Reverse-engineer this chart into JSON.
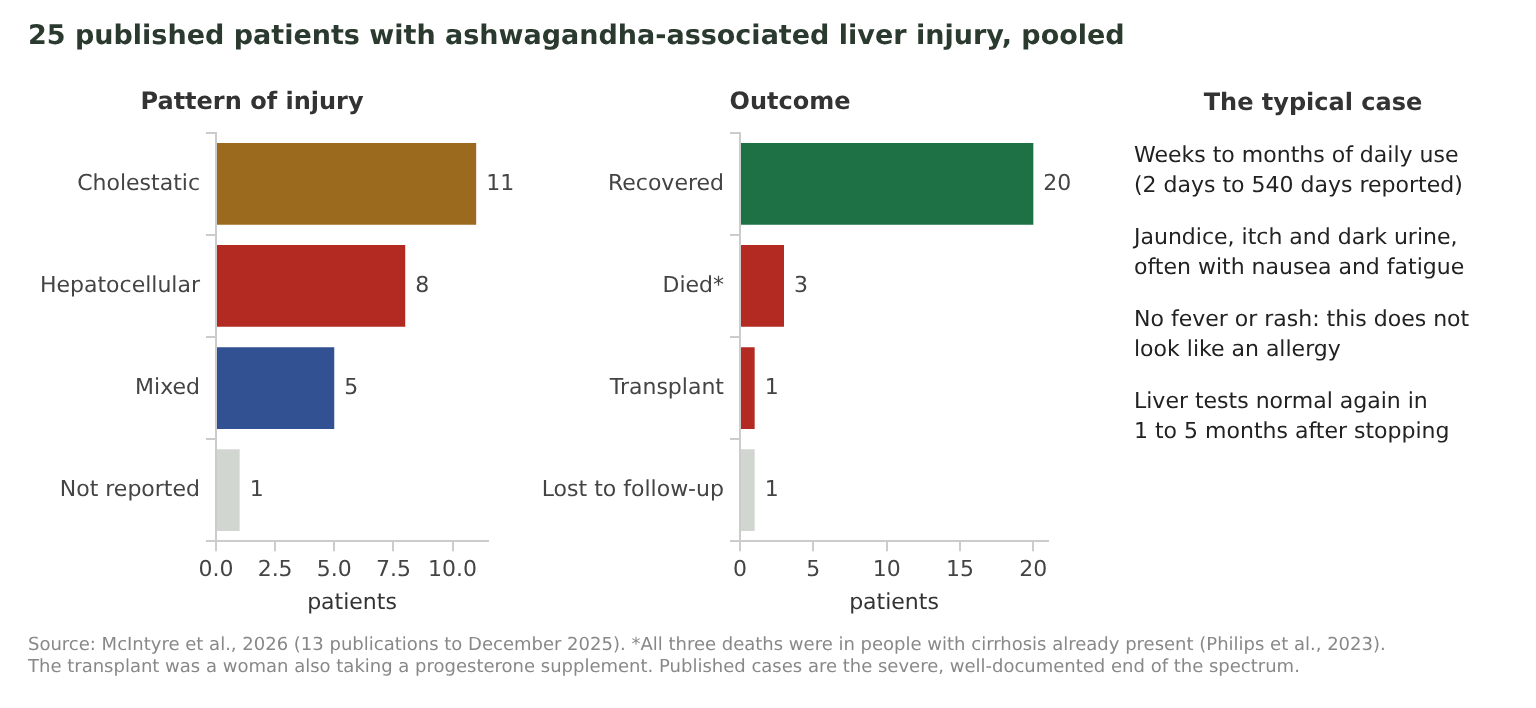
{
  "chart_data": [
    {
      "type": "bar",
      "orientation": "horizontal",
      "title": "25 published patients with ashwagandha-associated liver injury, pooled",
      "subtitle": "Pattern of injury",
      "xlabel": "patients",
      "categories": [
        "Cholestatic",
        "Hepatocellular",
        "Mixed",
        "Not reported"
      ],
      "values": [
        11,
        8,
        5,
        1
      ],
      "colors": [
        "#9b6a1e",
        "#b22a22",
        "#325192",
        "#d2d6d0"
      ],
      "xlim": [
        0,
        11.5
      ],
      "xticks": [
        {
          "value": 0,
          "label": "0.0"
        },
        {
          "value": 2.5,
          "label": "2.5"
        },
        {
          "value": 5,
          "label": "5.0"
        },
        {
          "value": 7.5,
          "label": "7.5"
        },
        {
          "value": 10,
          "label": "10.0"
        }
      ],
      "grid": false,
      "legend": false,
      "data_labels": true,
      "annotations": [
        "Source: McIntyre et al., 2026 (13 publications to December 2025). *All three deaths were in people with cirrhosis already present (Philips et al., 2023).",
        "The transplant was a woman also taking a progesterone supplement. Published cases are the severe, well-documented end of the spectrum."
      ]
    },
    {
      "type": "bar",
      "orientation": "horizontal",
      "title": "Outcome",
      "xlabel": "patients",
      "categories": [
        "Recovered",
        "Died*",
        "Transplant",
        "Lost to follow-up"
      ],
      "values": [
        20,
        3,
        1,
        1
      ],
      "colors": [
        "#1e7045",
        "#b22a22",
        "#b22a22",
        "#d2d6d0"
      ],
      "xlim": [
        0,
        21
      ],
      "xticks": [
        0,
        5,
        10,
        15,
        20
      ],
      "grid": false,
      "legend": false,
      "data_labels": true
    },
    {
      "type": "other",
      "title": "The typical case",
      "annotations": [
        "Weeks to months of daily use\n(2 days to 540 days reported)",
        "Jaundice, itch and dark urine,\noften with nausea and fatigue",
        "No fever or rash: this does not\nlook like an allergy",
        "Liver tests normal again in\n1 to 5 months after stopping"
      ]
    }
  ]
}
